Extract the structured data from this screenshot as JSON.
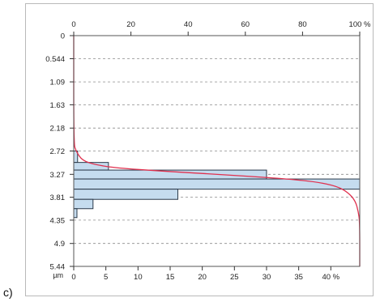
{
  "panel_label": "c)",
  "chart_data": {
    "type": "bar",
    "orientation": "horizontal",
    "title": "",
    "y_axis": {
      "label": "µm",
      "ticks": [
        "0",
        "0.544",
        "1.09",
        "1.63",
        "2.18",
        "2.72",
        "3.27",
        "3.81",
        "4.35",
        "4.9",
        "5.44"
      ],
      "range": [
        0,
        5.44
      ]
    },
    "x_bottom": {
      "ticks": [
        "0",
        "5",
        "10",
        "15",
        "20",
        "25",
        "30",
        "35",
        "40 %"
      ],
      "range": [
        0,
        44.5
      ]
    },
    "x_top": {
      "ticks": [
        "0",
        "20",
        "40",
        "60",
        "80",
        "100 %"
      ],
      "range": [
        0,
        100
      ]
    },
    "grid": "horizontal dashed",
    "series": [
      {
        "kind": "histogram",
        "bins": [
          {
            "from": 2.72,
            "to": 2.99,
            "value": 0.6
          },
          {
            "from": 2.99,
            "to": 3.17,
            "value": 5.4
          },
          {
            "from": 3.17,
            "to": 3.38,
            "value": 30.0
          },
          {
            "from": 3.38,
            "to": 3.62,
            "value": 44.5
          },
          {
            "from": 3.62,
            "to": 3.86,
            "value": 16.2
          },
          {
            "from": 3.86,
            "to": 4.08,
            "value": 3.0
          },
          {
            "from": 4.08,
            "to": 4.29,
            "value": 0.5
          }
        ]
      },
      {
        "kind": "cumulative",
        "axis": "x_top",
        "points": [
          [
            0,
            0
          ],
          [
            0,
            2.55
          ],
          [
            0.8,
            2.72
          ],
          [
            3,
            2.95
          ],
          [
            8,
            3.05
          ],
          [
            15,
            3.12
          ],
          [
            30,
            3.19
          ],
          [
            45,
            3.25
          ],
          [
            60,
            3.31
          ],
          [
            75,
            3.38
          ],
          [
            85,
            3.45
          ],
          [
            92,
            3.55
          ],
          [
            96,
            3.7
          ],
          [
            98.5,
            3.9
          ],
          [
            99.5,
            4.15
          ],
          [
            100,
            4.4
          ],
          [
            100,
            5.44
          ]
        ]
      }
    ],
    "colors": {
      "bar_fill": "#c5dcef",
      "bar_stroke": "#2b3a4a",
      "curve": "#e0304e",
      "grid": "#8c8c8c"
    }
  }
}
